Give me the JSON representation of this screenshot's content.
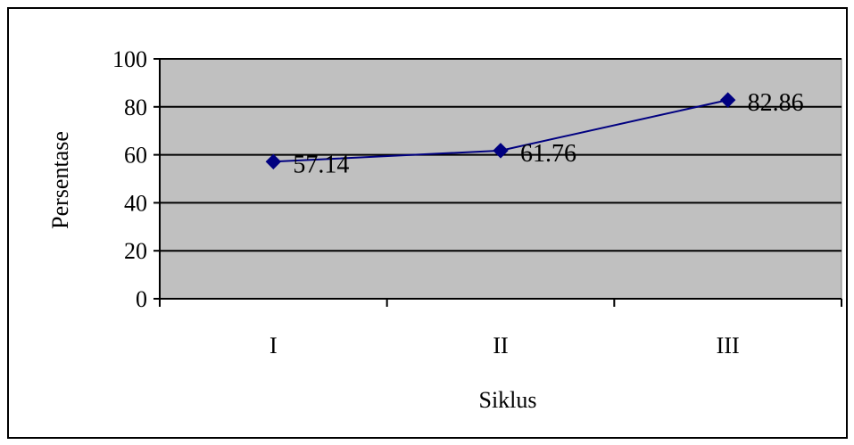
{
  "chart_data": {
    "type": "line",
    "title": "",
    "xlabel": "Siklus",
    "ylabel": "Persentase",
    "categories": [
      "I",
      "II",
      "III"
    ],
    "series": [
      {
        "values": [
          57.14,
          61.76,
          82.86
        ],
        "labels": [
          "57.14",
          "61.76",
          "82.86"
        ]
      }
    ],
    "ylim": [
      0,
      100
    ],
    "yticks": [
      "0",
      "20",
      "40",
      "60",
      "80",
      "100"
    ],
    "ytick_values": [
      0,
      20,
      40,
      60,
      80,
      100
    ],
    "grid": true,
    "legend": "none",
    "colors": {
      "plot_background": "#c0c0c0",
      "line": "#000080",
      "marker": "#000080",
      "gridline": "#000000",
      "border": "#000000"
    }
  }
}
